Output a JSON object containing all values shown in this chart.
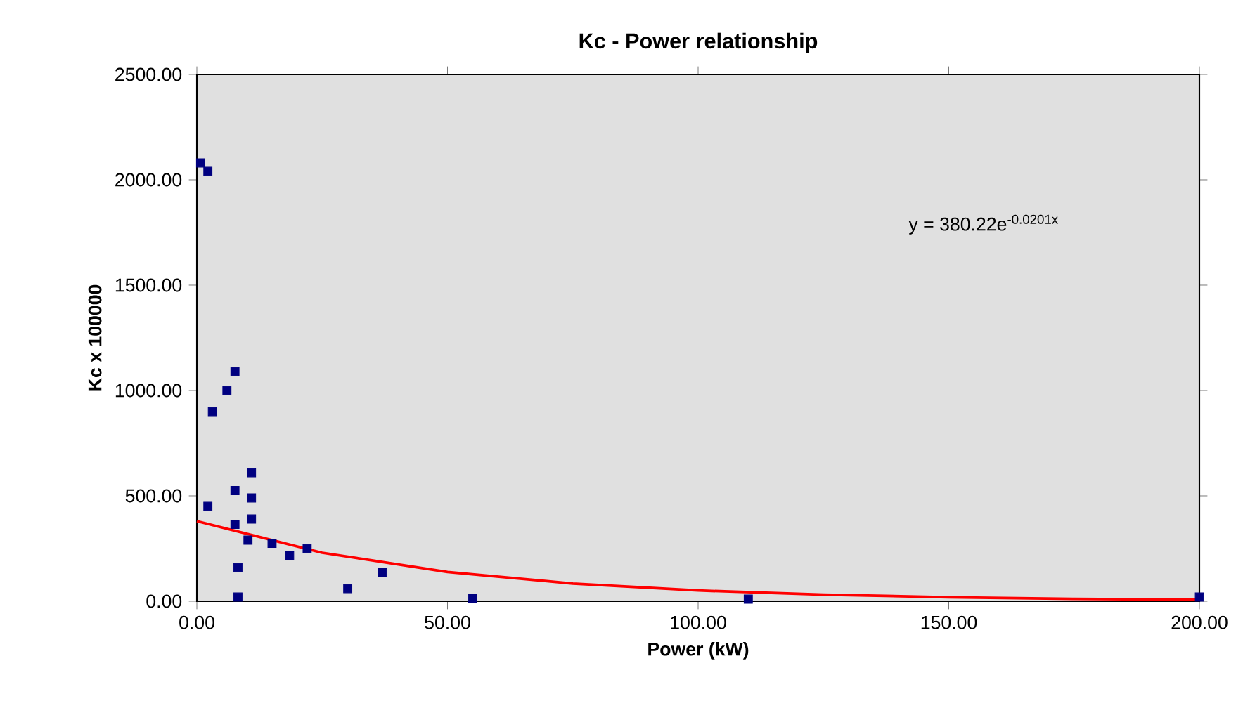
{
  "chart_data": {
    "type": "scatter",
    "title": "Kc - Power relationship",
    "xlabel": "Power (kW)",
    "ylabel": "Kc x 100000",
    "xlim": [
      0,
      200
    ],
    "ylim": [
      0,
      2500
    ],
    "xticks": [
      {
        "value": 0,
        "label": "0.00"
      },
      {
        "value": 50,
        "label": "50.00"
      },
      {
        "value": 100,
        "label": "100.00"
      },
      {
        "value": 150,
        "label": "150.00"
      },
      {
        "value": 200,
        "label": "200.00"
      }
    ],
    "yticks": [
      {
        "value": 0,
        "label": "0.00"
      },
      {
        "value": 500,
        "label": "500.00"
      },
      {
        "value": 1000,
        "label": "1000.00"
      },
      {
        "value": 1500,
        "label": "1500.00"
      },
      {
        "value": 2000,
        "label": "2000.00"
      },
      {
        "value": 2500,
        "label": "2500.00"
      }
    ],
    "marker": "square",
    "annotations": [
      "y = 380.22e$^{-0.0201x}$"
    ],
    "series": [
      {
        "color": "#000080",
        "x": [
          0.75,
          2.2,
          3.1,
          6.0,
          7.6,
          2.2,
          7.6,
          7.6,
          10.9,
          10.9,
          10.9,
          10.2,
          8.2,
          8.2,
          15.0,
          18.5,
          22.0,
          30.1,
          37.0,
          55.0,
          110.0,
          200.0
        ],
        "values": [
          2080,
          2040,
          900,
          1000,
          1090,
          450,
          525,
          365,
          610,
          490,
          390,
          290,
          160,
          20,
          275,
          215,
          250,
          60,
          135,
          15,
          10,
          20
        ]
      },
      {
        "type": "line",
        "marker": "none",
        "color": "#ff0000",
        "x": [
          0,
          25,
          50,
          75,
          100,
          125,
          150,
          175,
          200
        ],
        "values": [
          380,
          230,
          139,
          84,
          51,
          31,
          19,
          11,
          7
        ]
      }
    ]
  }
}
